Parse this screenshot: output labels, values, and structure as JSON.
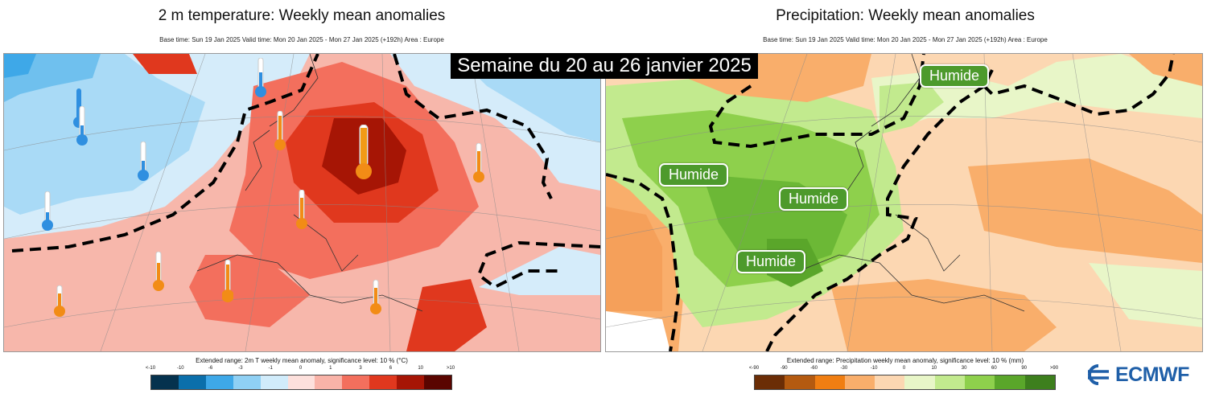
{
  "left": {
    "title": "2 m temperature: Weekly mean anomalies",
    "subtitle": "Base time: Sun 19 Jan 2025 Valid time: Mon 20 Jan 2025 - Mon 27 Jan 2025 (+192h) Area : Europe",
    "legend_title": "Extended range: 2m T weekly mean anomaly, significance level: 10 % (°C)",
    "ticks": [
      "<-10",
      "-10",
      "-6",
      "-3",
      "-1",
      "0",
      "1",
      "3",
      "6",
      "10",
      ">10"
    ],
    "colors": [
      "#05324e",
      "#0b6fab",
      "#3ea8e8",
      "#8fd0f4",
      "#d1ecfb",
      "#fde0dc",
      "#f9b3a8",
      "#f36f5d",
      "#e0381e",
      "#a61505",
      "#5a0500"
    ]
  },
  "right": {
    "title": "Precipitation: Weekly mean anomalies",
    "subtitle": "Base time: Sun 19 Jan 2025 Valid time: Mon 20 Jan 2025 - Mon 27 Jan 2025 (+192h) Area : Europe",
    "legend_title": "Extended range: Precipitation weekly mean anomaly, significance level: 10 % (mm)",
    "ticks": [
      "<-90",
      "-90",
      "-60",
      "-30",
      "-10",
      "0",
      "10",
      "30",
      "60",
      "90",
      ">90"
    ],
    "colors": [
      "#6b2d06",
      "#b45a10",
      "#f07e12",
      "#f9ae6b",
      "#fcd7b2",
      "#e8f6c8",
      "#c2ea8e",
      "#8ed04c",
      "#5aa62a",
      "#3d7f1d"
    ]
  },
  "banner": "Semaine du 20 au 26 janvier 2025",
  "humide_label": "Humide",
  "logo_text": "ECMWF"
}
